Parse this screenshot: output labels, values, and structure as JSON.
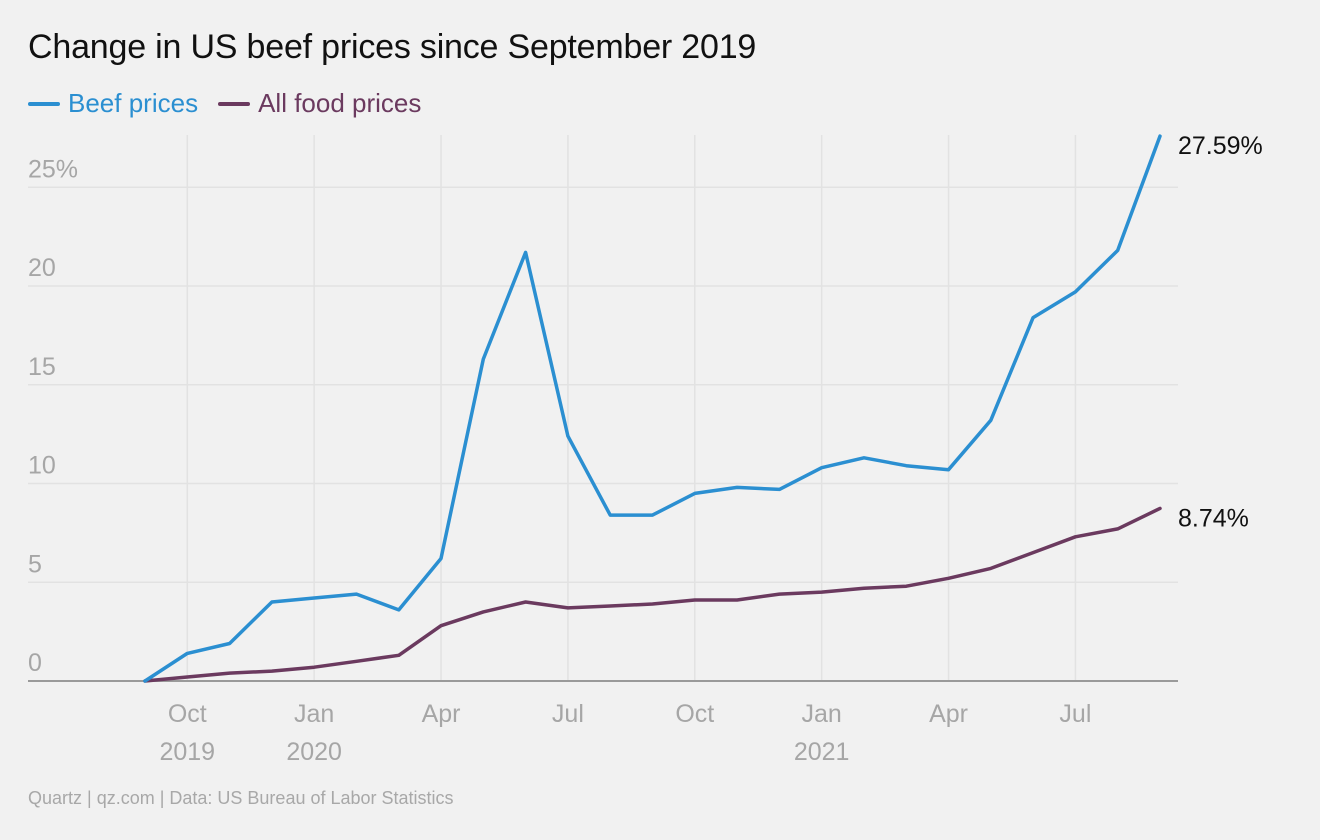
{
  "colors": {
    "beef": "#2b8fd1",
    "food": "#6b3a5f",
    "grid": "#e2e2e2",
    "axis": "#9a9a9a"
  },
  "source": "Quartz | qz.com | Data: US Bureau of Labor Statistics",
  "chart_data": {
    "type": "line",
    "title": "Change in US beef prices since September 2019",
    "xlabel": "",
    "ylabel": "",
    "ylim": [
      0,
      27.6
    ],
    "grid": true,
    "legend": "top-left",
    "x": [
      "2019-09",
      "2019-10",
      "2019-11",
      "2019-12",
      "2020-01",
      "2020-02",
      "2020-03",
      "2020-04",
      "2020-05",
      "2020-06",
      "2020-07",
      "2020-08",
      "2020-09",
      "2020-10",
      "2020-11",
      "2020-12",
      "2021-01",
      "2021-02",
      "2021-03",
      "2021-04",
      "2021-05",
      "2021-06",
      "2021-07",
      "2021-08",
      "2021-09"
    ],
    "series": [
      {
        "name": "Beef prices",
        "color": "#2b8fd1",
        "values": [
          0,
          1.4,
          1.9,
          4.0,
          4.2,
          4.4,
          3.6,
          6.2,
          16.3,
          21.7,
          12.4,
          8.4,
          8.4,
          9.5,
          9.8,
          9.7,
          10.8,
          11.3,
          10.9,
          10.7,
          13.2,
          18.4,
          19.7,
          21.8,
          27.59
        ]
      },
      {
        "name": "All food prices",
        "color": "#6b3a5f",
        "values": [
          0,
          0.2,
          0.4,
          0.5,
          0.7,
          1.0,
          1.3,
          2.8,
          3.5,
          4.0,
          3.7,
          3.8,
          3.9,
          4.1,
          4.1,
          4.4,
          4.5,
          4.7,
          4.8,
          5.2,
          5.7,
          6.5,
          7.3,
          7.7,
          8.74
        ]
      }
    ],
    "y_ticks": [
      {
        "value": 0,
        "label": "0"
      },
      {
        "value": 5,
        "label": "5"
      },
      {
        "value": 10,
        "label": "10"
      },
      {
        "value": 15,
        "label": "15"
      },
      {
        "value": 20,
        "label": "20"
      },
      {
        "value": 25,
        "label": "25%"
      }
    ],
    "x_ticks": [
      {
        "index": 1,
        "label": "Oct",
        "sub": "2019"
      },
      {
        "index": 4,
        "label": "Jan",
        "sub": "2020"
      },
      {
        "index": 7,
        "label": "Apr",
        "sub": ""
      },
      {
        "index": 10,
        "label": "Jul",
        "sub": ""
      },
      {
        "index": 13,
        "label": "Oct",
        "sub": ""
      },
      {
        "index": 16,
        "label": "Jan",
        "sub": "2021"
      },
      {
        "index": 19,
        "label": "Apr",
        "sub": ""
      },
      {
        "index": 22,
        "label": "Jul",
        "sub": ""
      }
    ],
    "end_labels": [
      "27.59%",
      "8.74%"
    ]
  }
}
